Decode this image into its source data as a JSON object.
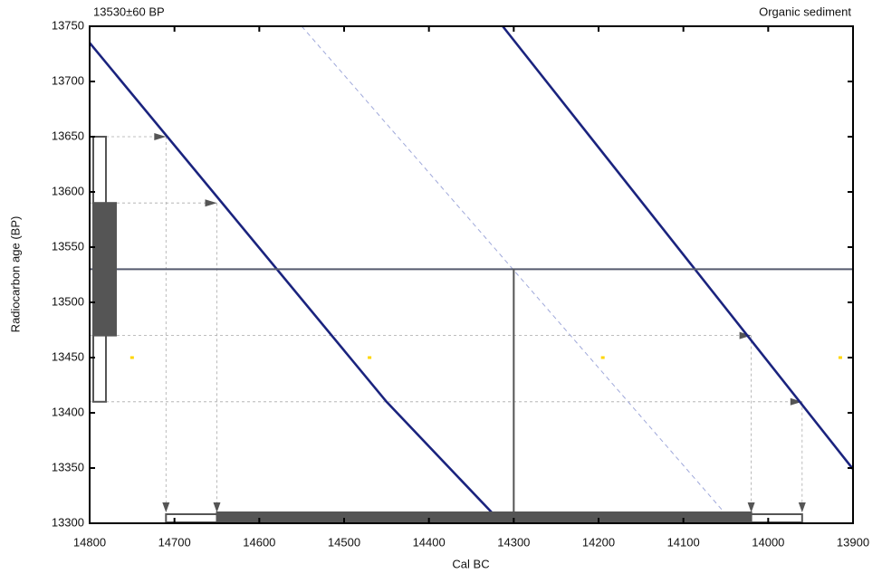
{
  "chart_data": {
    "type": "calibration",
    "title": "13530±60 BP",
    "subtitle": "Organic sediment",
    "x_label": "Cal BC",
    "y_label": "Radiocarbon age (BP)",
    "xlim": [
      14800,
      13900
    ],
    "ylim": [
      13300,
      13750
    ],
    "xticks": [
      14800,
      14700,
      14600,
      14500,
      14400,
      14300,
      14200,
      14100,
      14000,
      13900
    ],
    "yticks": [
      13300,
      13350,
      13400,
      13450,
      13500,
      13550,
      13600,
      13650,
      13700,
      13750
    ],
    "series": [
      {
        "color": "#1a237e",
        "x": [
          14800,
          14450,
          14320
        ],
        "values": [
          13735,
          13410,
          13305
        ]
      },
      {
        "color": "#1a237e",
        "x": [
          14313,
          13900
        ],
        "values": [
          13750,
          13349
        ]
      },
      {
        "color": "#9fa8da",
        "dashed": true,
        "x": [
          14550,
          14052
        ],
        "values": [
          13750,
          13310
        ]
      }
    ],
    "measured_age": 13530,
    "median": 14300,
    "sigma_ranges": [
      {
        "filled": false,
        "y": [
          13410,
          13650
        ],
        "x": [
          14710,
          13960
        ]
      },
      {
        "filled": true,
        "y": [
          13470,
          13590
        ],
        "x": [
          14650,
          14020
        ]
      }
    ],
    "markers": {
      "color": "#ffd600",
      "y": 13450,
      "x": [
        14750,
        14470,
        14195,
        13915
      ]
    }
  }
}
